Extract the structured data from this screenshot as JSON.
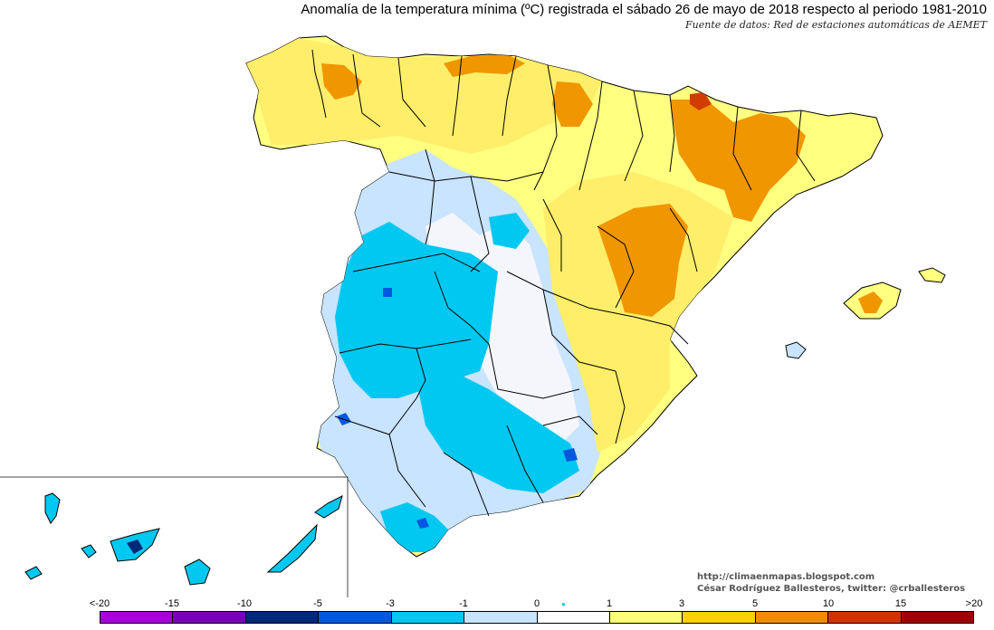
{
  "header": {
    "title": "Anomalía de la temperatura mínima (ºC) registrada el sábado 26 de mayo de 2018 respecto al periodo 1981-2010",
    "source": "Fuente de datos: Red de estaciones automáticas de AEMET"
  },
  "credits": {
    "blog": "http://climaenmapas.blogspot.com",
    "author": "César Rodríguez Ballesteros, twitter: @crballesteros"
  },
  "legend": {
    "labels": [
      "<-20",
      "-15",
      "-10",
      "-5",
      "-3",
      "-1",
      "0",
      "1",
      "3",
      "5",
      "10",
      "15",
      ">20"
    ],
    "colors": [
      "#d868f0",
      "#a800d8",
      "#7800b8",
      "#002878",
      "#0058e0",
      "#00c8f0",
      "#c8e4ff",
      "#ffffff",
      "#ffff78",
      "#ffd200",
      "#f08c00",
      "#d23200",
      "#a00000",
      "#643200"
    ]
  },
  "map": {
    "region": "Península Ibérica (España), Baleares y Canarias",
    "colors": {
      "strong_warm": "#f09600",
      "deep_warm": "#d23c00",
      "warm": "#ffff80",
      "mild_warm": "#ffee6a",
      "neutral": "#f4f6fb",
      "mild_cool": "#c8e4ff",
      "cool": "#00c8f0",
      "cold": "#0058e0",
      "very_cold": "#002878",
      "border": "#000000"
    }
  }
}
